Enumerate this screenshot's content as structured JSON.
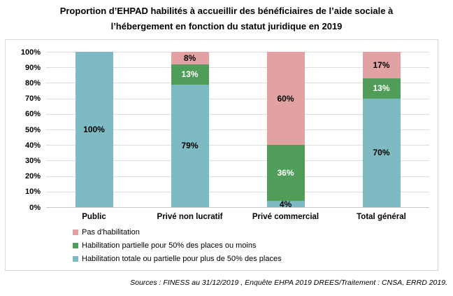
{
  "title": {
    "lines": [
      "Proportion d’EHPAD habilités à accueillir des bénéficiaires de l’aide sociale à",
      "l’hébergement en fonction du statut juridique en 2019"
    ]
  },
  "source_note": "Sources : FINESS au 31/12/2019 , Enquête EHPA 2019 DREES/Traitement : CNSA, ERRD 2019.",
  "chart_data": {
    "type": "bar",
    "variant": "stacked-100-percent",
    "title": "Proportion d’EHPAD habilités à accueillir des bénéficiaires de l’aide sociale à l’hébergement en fonction du statut juridique en 2019",
    "categories": [
      "Public",
      "Privé non lucratif",
      "Privé commercial",
      "Total général"
    ],
    "series": [
      {
        "name": "Habilitation totale ou partielle pour plus de 50% des places",
        "color": "#7dbac3",
        "label_color": "#000000",
        "values": [
          100,
          79,
          4,
          70
        ]
      },
      {
        "name": "Habilitation partielle pour 50% des places ou moins",
        "color": "#4f9d59",
        "label_color": "#ffffff",
        "values": [
          0,
          13,
          36,
          13
        ]
      },
      {
        "name": "Pas d'habilitation",
        "color": "#e2a2a4",
        "label_color": "#000000",
        "values": [
          0,
          8,
          60,
          17
        ]
      }
    ],
    "y_ticks": [
      "0%",
      "10%",
      "20%",
      "30%",
      "40%",
      "50%",
      "60%",
      "70%",
      "80%",
      "90%",
      "100%"
    ],
    "ylim": [
      0,
      100
    ],
    "grid": true,
    "legend_position": "bottom-left",
    "legend_order_top_to_bottom": [
      "Pas d'habilitation",
      "Habilitation partielle pour 50% des places ou moins",
      "Habilitation totale ou partielle pour plus de 50% des places"
    ],
    "colors": {
      "grid": "#dcdcdc",
      "axis_line": "#c9c9c9",
      "box_border": "#d9d9d9",
      "text": "#000000"
    }
  }
}
